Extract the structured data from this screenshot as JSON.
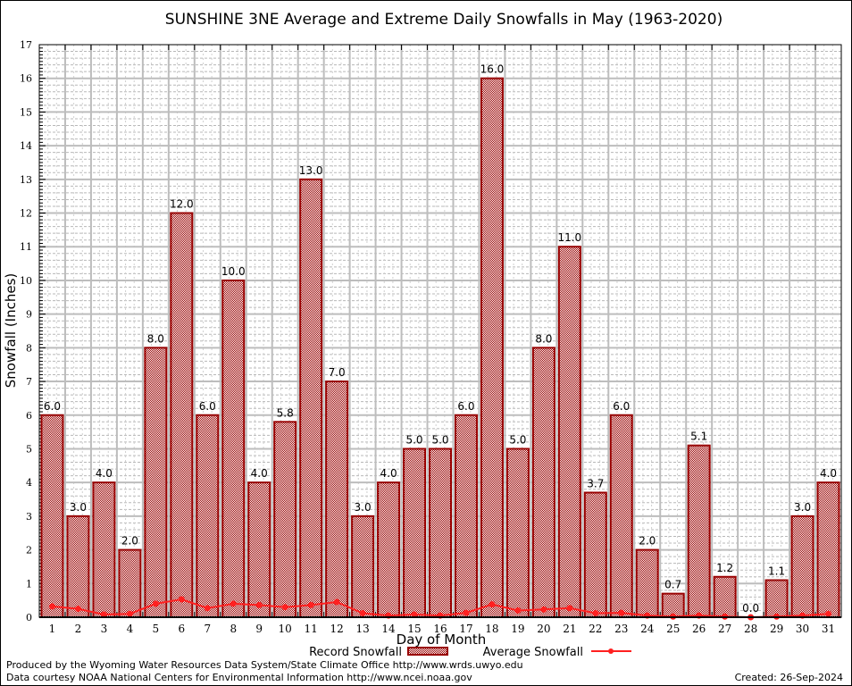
{
  "chart_data": {
    "type": "bar",
    "title": "SUNSHINE 3NE Average and Extreme Daily Snowfalls in May (1963-2020)",
    "xlabel": "Day of Month",
    "ylabel": "Snowfall (Inches)",
    "ylim": [
      0,
      17
    ],
    "yticks": [
      "0",
      "1",
      "2",
      "3",
      "4",
      "5",
      "6",
      "7",
      "8",
      "9",
      "10",
      "11",
      "12",
      "13",
      "14",
      "15",
      "16",
      "17"
    ],
    "categories": [
      "1",
      "2",
      "3",
      "4",
      "5",
      "6",
      "7",
      "8",
      "9",
      "10",
      "11",
      "12",
      "13",
      "14",
      "15",
      "16",
      "17",
      "18",
      "19",
      "20",
      "21",
      "22",
      "23",
      "24",
      "25",
      "26",
      "27",
      "28",
      "29",
      "30",
      "31"
    ],
    "grid": true,
    "legend_position": "bottom",
    "series": [
      {
        "name": "Record Snowfall",
        "type": "bar",
        "color": "#990000",
        "values": [
          6.0,
          3.0,
          4.0,
          2.0,
          8.0,
          12.0,
          6.0,
          10.0,
          4.0,
          5.8,
          13.0,
          7.0,
          3.0,
          4.0,
          5.0,
          5.0,
          6.0,
          16.0,
          5.0,
          8.0,
          11.0,
          3.7,
          6.0,
          2.0,
          0.7,
          5.1,
          1.2,
          0.0,
          1.1,
          3.0,
          4.0
        ],
        "labels": [
          "6.0",
          "3.0",
          "4.0",
          "2.0",
          "8.0",
          "12.0",
          "6.0",
          "10.0",
          "4.0",
          "5.8",
          "13.0",
          "7.0",
          "3.0",
          "4.0",
          "5.0",
          "5.0",
          "6.0",
          "16.0",
          "5.0",
          "8.0",
          "11.0",
          "3.7",
          "6.0",
          "2.0",
          "0.7",
          "5.1",
          "1.2",
          "0.0",
          "1.1",
          "3.0",
          "4.0"
        ]
      },
      {
        "name": "Average Snowfall",
        "type": "line",
        "color": "#ff2020",
        "values": [
          0.32,
          0.25,
          0.08,
          0.1,
          0.4,
          0.53,
          0.27,
          0.4,
          0.36,
          0.3,
          0.36,
          0.45,
          0.12,
          0.05,
          0.08,
          0.05,
          0.13,
          0.38,
          0.2,
          0.23,
          0.27,
          0.12,
          0.13,
          0.05,
          0.02,
          0.05,
          0.02,
          0.0,
          0.02,
          0.05,
          0.1
        ]
      }
    ]
  },
  "footer": {
    "line1": "Produced by the Wyoming Water Resources Data System/State Climate Office http://www.wrds.uwyo.edu",
    "line2": "Data courtesy NOAA National Centers for Environmental Information http://www.ncei.noaa.gov",
    "created": "Created:  26-Sep-2024"
  }
}
